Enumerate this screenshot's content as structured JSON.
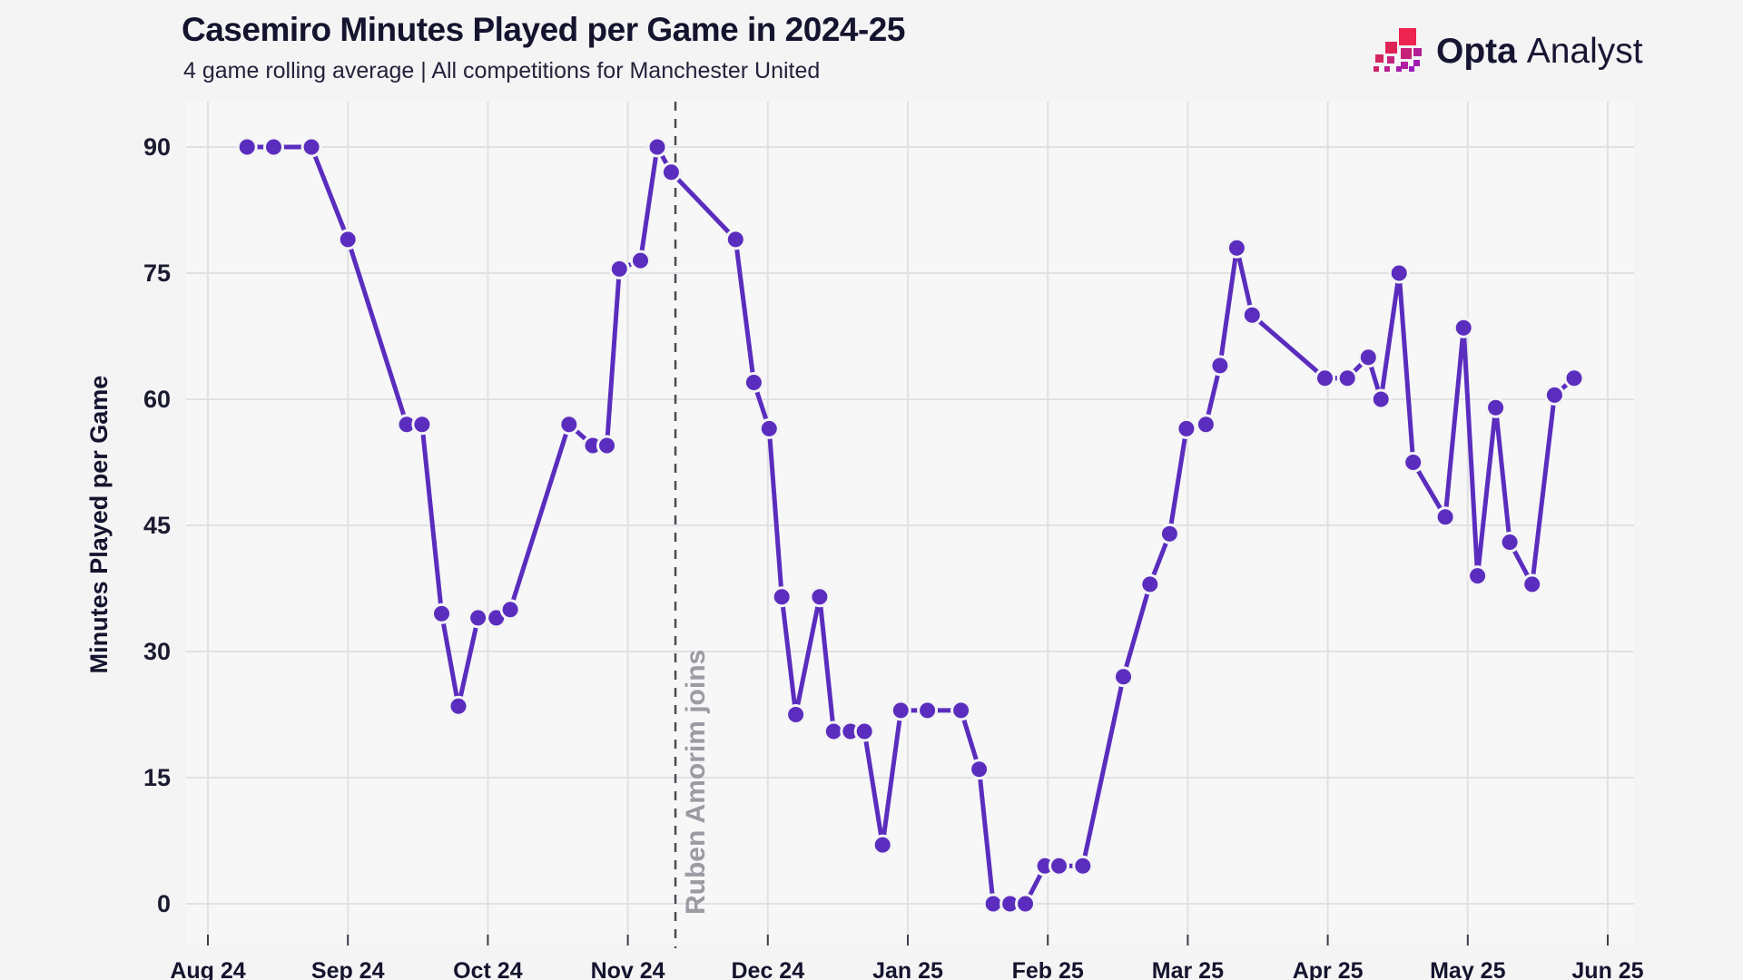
{
  "header": {
    "title": "Casemiro Minutes Played per Game in 2024-25",
    "subtitle": "4 game rolling average | All competitions for Manchester United"
  },
  "logo": {
    "bold": "Opta",
    "light": "Analyst"
  },
  "colors": {
    "accent_purple": "#5b2dbe",
    "background": "#f4f4f5",
    "annotation_gray": "#9b9ba2",
    "logo_red": "#ed2350",
    "logo_purple": "#a21caf"
  },
  "chart_data": {
    "type": "line",
    "title": "Casemiro Minutes Played per Game in 2024-25",
    "subtitle": "4 game rolling average | All competitions for Manchester United",
    "xlabel": "",
    "ylabel": "Minutes Played per Game",
    "ylim": [
      0,
      95
    ],
    "yticks": [
      0,
      15,
      30,
      45,
      60,
      75,
      90
    ],
    "xticks": [
      "Aug 24",
      "Sep 24",
      "Oct 24",
      "Nov 24",
      "Dec 24",
      "Jan 25",
      "Feb 25",
      "Mar 25",
      "Apr 25",
      "May 25",
      "Jun 25"
    ],
    "grid": true,
    "legend": "none",
    "annotation": {
      "label": "Ruben Amorim joins",
      "x": 3.34
    },
    "series": [
      {
        "name": "4-game rolling average minutes played",
        "color": "#5b2dbe",
        "points": [
          [
            0.28,
            90
          ],
          [
            0.47,
            90
          ],
          [
            0.74,
            90
          ],
          [
            1.0,
            79
          ],
          [
            1.42,
            57
          ],
          [
            1.53,
            57
          ],
          [
            1.67,
            34.5
          ],
          [
            1.79,
            23.5
          ],
          [
            1.93,
            34
          ],
          [
            2.06,
            34
          ],
          [
            2.16,
            35
          ],
          [
            2.58,
            57
          ],
          [
            2.75,
            54.5
          ],
          [
            2.85,
            54.5
          ],
          [
            2.94,
            75.5
          ],
          [
            3.09,
            76.5
          ],
          [
            3.21,
            90
          ],
          [
            3.31,
            87
          ],
          [
            3.77,
            79
          ],
          [
            3.9,
            62
          ],
          [
            4.01,
            56.5
          ],
          [
            4.1,
            36.5
          ],
          [
            4.2,
            22.5
          ],
          [
            4.37,
            36.5
          ],
          [
            4.47,
            20.5
          ],
          [
            4.59,
            20.5
          ],
          [
            4.69,
            20.5
          ],
          [
            4.82,
            7
          ],
          [
            4.95,
            23
          ],
          [
            5.14,
            23
          ],
          [
            5.38,
            23
          ],
          [
            5.51,
            16
          ],
          [
            5.61,
            0
          ],
          [
            5.73,
            0
          ],
          [
            5.84,
            0
          ],
          [
            5.98,
            4.5
          ],
          [
            6.08,
            4.5
          ],
          [
            6.25,
            4.5
          ],
          [
            6.54,
            27
          ],
          [
            6.73,
            38
          ],
          [
            6.87,
            44
          ],
          [
            6.99,
            56.5
          ],
          [
            7.13,
            57
          ],
          [
            7.23,
            64
          ],
          [
            7.35,
            78
          ],
          [
            7.46,
            70
          ],
          [
            7.98,
            62.5
          ],
          [
            8.14,
            62.5
          ],
          [
            8.29,
            65
          ],
          [
            8.38,
            60
          ],
          [
            8.51,
            75
          ],
          [
            8.61,
            52.5
          ],
          [
            8.84,
            46
          ],
          [
            8.97,
            68.5
          ],
          [
            9.07,
            39
          ],
          [
            9.2,
            59
          ],
          [
            9.3,
            43
          ],
          [
            9.46,
            38
          ],
          [
            9.62,
            60.5
          ],
          [
            9.76,
            62.5
          ]
        ]
      }
    ]
  }
}
